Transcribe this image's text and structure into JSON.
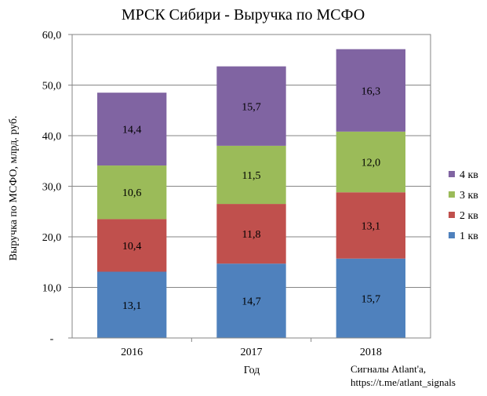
{
  "chart_data": {
    "type": "bar",
    "stacked": true,
    "title": "МРСК Сибири - Выручка по МСФО",
    "xlabel": "Год",
    "ylabel": "Выручка по МСФО, млрд. руб.",
    "categories": [
      "2016",
      "2017",
      "2018"
    ],
    "ylim": [
      0,
      60
    ],
    "yticks": [
      "-",
      "10,0",
      "20,0",
      "30,0",
      "40,0",
      "50,0",
      "60,0"
    ],
    "grid": true,
    "legend_position": "right",
    "series": [
      {
        "name": "1 кв",
        "color": "#4f81bd",
        "values": [
          13.1,
          14.7,
          15.7
        ],
        "labels": [
          "13,1",
          "14,7",
          "15,7"
        ]
      },
      {
        "name": "2 кв",
        "color": "#c0504d",
        "values": [
          10.4,
          11.8,
          13.1
        ],
        "labels": [
          "10,4",
          "11,8",
          "13,1"
        ]
      },
      {
        "name": "3 кв",
        "color": "#9bbb59",
        "values": [
          10.6,
          11.5,
          12.0
        ],
        "labels": [
          "10,6",
          "11,5",
          "12,0"
        ]
      },
      {
        "name": "4 кв",
        "color": "#8064a2",
        "values": [
          14.4,
          15.7,
          16.3
        ],
        "labels": [
          "14,4",
          "15,7",
          "16,3"
        ]
      }
    ]
  },
  "source_note": {
    "line1": "Сигналы Atlant'a,",
    "line2": "https://t.me/atlant_signals"
  }
}
